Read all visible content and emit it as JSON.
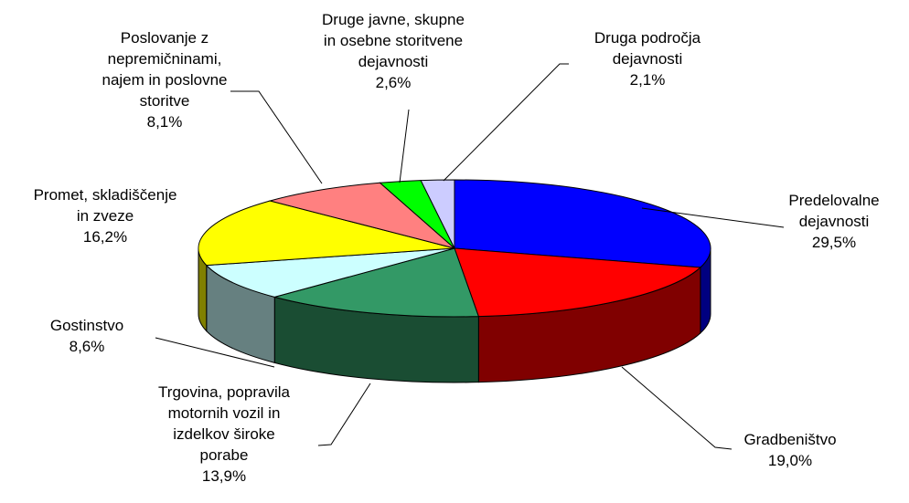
{
  "chart_data": {
    "type": "pie3d",
    "categories": [
      "Predelovalne\ndejavnosti",
      "Gradbeništvo",
      "Trgovina, popravila\nmotornih vozil in\nizdelkov široke\nporabe",
      "Gostinstvo",
      "Promet, skladiščenje\nin zveze",
      "Poslovanje z\nnepremičninami,\nnajem in poslovne\nstoritve",
      "Druge javne, skupne\nin osebne storitvene\ndejavnosti",
      "Druga področja\ndejavnosti"
    ],
    "values": [
      29.5,
      19.0,
      13.9,
      8.6,
      16.2,
      8.1,
      2.6,
      2.1
    ],
    "value_labels": [
      "29,5%",
      "19,0%",
      "13,9%",
      "8,6%",
      "16,2%",
      "8,1%",
      "2,6%",
      "2,1%"
    ],
    "colors": [
      "#0000ff",
      "#ff0000",
      "#339966",
      "#ccffff",
      "#ffff00",
      "#ff8080",
      "#00ff00",
      "#ccccff"
    ]
  }
}
